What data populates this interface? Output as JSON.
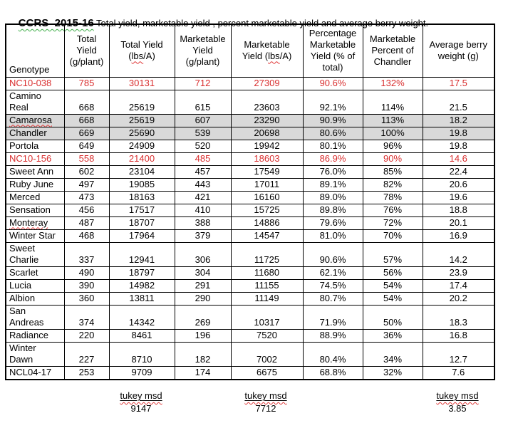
{
  "title": {
    "main": "CCRS  2015-16",
    "subtitle": " Total yield, marketable yield , percent marketable yield and average berry weight."
  },
  "table": {
    "columns": [
      {
        "label": "Genotype"
      },
      {
        "label": "Total Yield (g/plant)"
      },
      {
        "label": "Total Yield (lbs/A)",
        "misspelled_word": "lbs"
      },
      {
        "label": "Marketable Yield (g/plant)"
      },
      {
        "label": "Marketable Yield  (lbs/A)",
        "misspelled_word": "lbs"
      },
      {
        "label": "Percentage Marketable Yield (% of total)"
      },
      {
        "label": "Marketable Percent of Chandler"
      },
      {
        "label": "Average berry weight (g)"
      }
    ],
    "rows": [
      {
        "genotype": "NC10-038",
        "values": [
          "785",
          "30131",
          "712",
          "27309",
          "90.6%",
          "132%",
          "17.5"
        ],
        "text_color": "red"
      },
      {
        "genotype": "Camino\nReal",
        "values": [
          "668",
          "25619",
          "615",
          "23603",
          "92.1%",
          "114%",
          "21.5"
        ]
      },
      {
        "genotype": "Camarosa",
        "values": [
          "668",
          "25619",
          "607",
          "23290",
          "90.9%",
          "113%",
          "18.2"
        ],
        "shaded": true,
        "misspelled": true
      },
      {
        "genotype": "Chandler",
        "values": [
          "669",
          "25690",
          "539",
          "20698",
          "80.6%",
          "100%",
          "19.8"
        ],
        "shaded": true
      },
      {
        "genotype": "Portola",
        "values": [
          "649",
          "24909",
          "520",
          "19942",
          "80.1%",
          "96%",
          "19.8"
        ]
      },
      {
        "genotype": "NC10-156",
        "values": [
          "558",
          "21400",
          "485",
          "18603",
          "86.9%",
          "90%",
          "14.6"
        ],
        "text_color": "red"
      },
      {
        "genotype": "Sweet Ann",
        "values": [
          "602",
          "23104",
          "457",
          "17549",
          "76.0%",
          "85%",
          "22.4"
        ]
      },
      {
        "genotype": "Ruby June",
        "values": [
          "497",
          "19085",
          "443",
          "17011",
          "89.1%",
          "82%",
          "20.6"
        ]
      },
      {
        "genotype": "Merced",
        "values": [
          "473",
          "18163",
          "421",
          "16160",
          "89.0%",
          "78%",
          "19.6"
        ]
      },
      {
        "genotype": "Sensation",
        "values": [
          "456",
          "17517",
          "410",
          "15725",
          "89.8%",
          "76%",
          "18.8"
        ]
      },
      {
        "genotype": "Monteray",
        "values": [
          "487",
          "18707",
          "388",
          "14886",
          "79.6%",
          "72%",
          "20.1"
        ],
        "misspelled": true
      },
      {
        "genotype": "Winter Star",
        "values": [
          "468",
          "17964",
          "379",
          "14547",
          "81.0%",
          "70%",
          "16.9"
        ]
      },
      {
        "genotype": "Sweet\nCharlie",
        "values": [
          "337",
          "12941",
          "306",
          "11725",
          "90.6%",
          "57%",
          "14.2"
        ]
      },
      {
        "genotype": "Scarlet",
        "values": [
          "490",
          "18797",
          "304",
          "11680",
          "62.1%",
          "56%",
          "23.9"
        ]
      },
      {
        "genotype": "Lucia",
        "values": [
          "390",
          "14982",
          "291",
          "11155",
          "74.5%",
          "54%",
          "17.4"
        ]
      },
      {
        "genotype": "Albion",
        "values": [
          "360",
          "13811",
          "290",
          "11149",
          "80.7%",
          "54%",
          "20.2"
        ]
      },
      {
        "genotype": "San\nAndreas",
        "values": [
          "374",
          "14342",
          "269",
          "10317",
          "71.9%",
          "50%",
          "18.3"
        ]
      },
      {
        "genotype": "Radiance",
        "values": [
          "220",
          "8461",
          "196",
          "7520",
          "88.9%",
          "36%",
          "16.8"
        ]
      },
      {
        "genotype": "Winter\nDawn",
        "values": [
          "227",
          "8710",
          "182",
          "7002",
          "80.4%",
          "34%",
          "12.7"
        ]
      },
      {
        "genotype": "NCL04-17",
        "values": [
          "253",
          "9709",
          "174",
          "6675",
          "68.8%",
          "32%",
          "7.6"
        ]
      }
    ]
  },
  "footer": {
    "items": [
      {
        "label": "tukey msd",
        "value": "9147"
      },
      {
        "label": "tukey msd",
        "value": "7712"
      },
      {
        "label": "tukey msd",
        "value": "3.85"
      }
    ]
  },
  "colors": {
    "red_text": "#d92e2e",
    "row_shade": "#d9d9d9",
    "spell_squiggle": "#e03a3a",
    "grammar_squiggle": "#3fae49",
    "border": "#000000"
  }
}
